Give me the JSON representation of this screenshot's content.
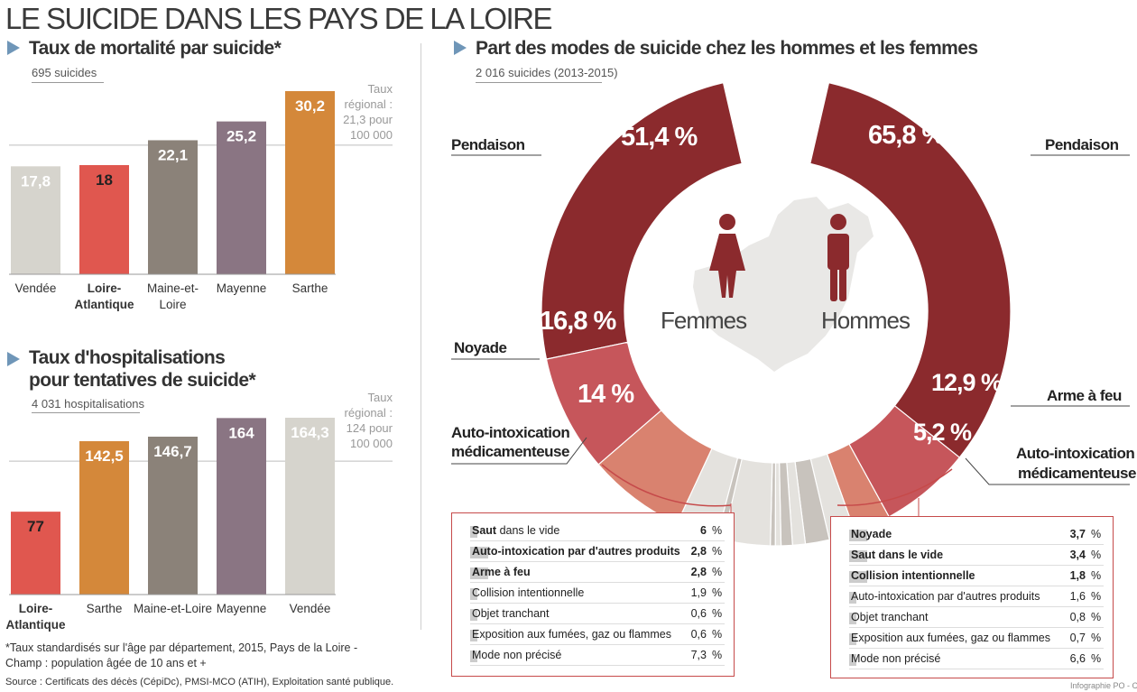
{
  "title": "LE SUICIDE DANS LES PAYS DE LA LOIRE",
  "chart1": {
    "heading": "Taux de mortalité par suicide*",
    "subtitle": "695 suicides",
    "reference_note": "Taux régional : 21,3 pour 100 000",
    "reference_note_lines": [
      "Taux",
      "régional :",
      "21,3 pour",
      "100 000"
    ],
    "reference_value": 21.3
  },
  "chart2": {
    "heading_line1": "Taux d'hospitalisations",
    "heading_line2": "pour tentatives de suicide*",
    "subtitle": "4 031 hospitalisations",
    "reference_note": "Taux régional : 124 pour 100 000",
    "reference_note_lines": [
      "Taux",
      "régional :",
      "124 pour",
      "100 000"
    ],
    "reference_value": 124
  },
  "chart3": {
    "heading": "Part des modes de suicide chez les hommes et les femmes",
    "subtitle": "2 016 suicides (2013-2015)",
    "women_label": "Femmes",
    "men_label": "Hommes",
    "women_labels": {
      "pendaison": "Pendaison",
      "noyade": "Noyade",
      "auto_intox_line1": "Auto-intoxication",
      "auto_intox_line2": "médicamenteuse"
    },
    "men_labels": {
      "pendaison": "Pendaison",
      "arme": "Arme à feu",
      "auto_intox_line1": "Auto-intoxication",
      "auto_intox_line2": "médicamenteuse"
    },
    "women_value_labels": [
      "51,4 %",
      "16,8 %",
      "14 %"
    ],
    "men_value_labels": [
      "65,8 %",
      "12,9 %",
      "5,2 %"
    ],
    "women_table": [
      {
        "label": "Saut dans le vide",
        "bold_part": "Saut",
        "rest": " dans le vide",
        "all_bold": false,
        "value": "6",
        "unit": "%"
      },
      {
        "label": "Auto-intoxication par d'autres produits",
        "all_bold": true,
        "value": "2,8",
        "unit": "%"
      },
      {
        "label": "Arme à feu",
        "all_bold": true,
        "value": "2,8",
        "unit": "%"
      },
      {
        "label": "Collision intentionnelle",
        "all_bold": false,
        "value": "1,9",
        "unit": "%"
      },
      {
        "label": "Objet tranchant",
        "all_bold": false,
        "value": "0,6",
        "unit": "%"
      },
      {
        "label": "Exposition aux fumées, gaz ou flammes",
        "all_bold": false,
        "value": "0,6",
        "unit": "%"
      },
      {
        "label": "Mode non précisé",
        "all_bold": false,
        "value": "7,3",
        "unit": "%"
      }
    ],
    "men_table": [
      {
        "label": "Noyade",
        "all_bold": true,
        "value": "3,7",
        "unit": "%"
      },
      {
        "label": "Saut dans le vide",
        "all_bold": true,
        "value": "3,4",
        "unit": "%"
      },
      {
        "label": "Collision intentionnelle",
        "all_bold": true,
        "value": "1,8",
        "unit": "%"
      },
      {
        "label": "Auto-intoxication par d'autres produits",
        "all_bold": false,
        "value": "1,6",
        "unit": "%"
      },
      {
        "label": "Objet tranchant",
        "all_bold": false,
        "value": "0,8",
        "unit": "%"
      },
      {
        "label": "Exposition aux fumées, gaz ou flammes",
        "all_bold": false,
        "value": "0,7",
        "unit": "%"
      },
      {
        "label": "Mode non précisé",
        "all_bold": false,
        "value": "6,6",
        "unit": "%"
      }
    ]
  },
  "footnote": "*Taux standardisés sur l'âge par département, 2015, Pays de la Loire - Champ : population âgée de 10 ans et +",
  "source": "Source : Certificats des décès (CépiDc), PMSI-MCO (ATIH), Exploitation santé publique.",
  "credit": "Infographie PO - CG",
  "colors": {
    "pendaison": "#8b2a2d",
    "noyade": "#c6565b",
    "auto_intox": "#d9826f",
    "other_light": "#e4e2de",
    "other_mid": "#c8c3bd",
    "vendee": "#d6d4cd",
    "loire_atlantique": "#e0574f",
    "maine_et_loire": "#8b8279",
    "mayenne": "#8a7583",
    "sarthe": "#d4883a",
    "triangle": "#6f96b8"
  },
  "chart_data": [
    {
      "type": "bar",
      "title": "Taux de mortalité par suicide*",
      "categories": [
        "Vendée",
        "Loire-Atlantique",
        "Maine-et-Loire",
        "Mayenne",
        "Sarthe"
      ],
      "category_lines": [
        [
          "Vendée"
        ],
        [
          "Loire-",
          "Atlantique"
        ],
        [
          "Maine-et-",
          "Loire"
        ],
        [
          "Mayenne"
        ],
        [
          "Sarthe"
        ]
      ],
      "category_bold": [
        false,
        true,
        false,
        false,
        false
      ],
      "values": [
        17.8,
        18,
        22.1,
        25.2,
        30.2
      ],
      "value_labels": [
        "17,8",
        "18",
        "22,1",
        "25,2",
        "30,2"
      ],
      "colors": [
        "#d6d4cd",
        "#e0574f",
        "#8b8279",
        "#8a7583",
        "#d4883a"
      ],
      "label_colors": [
        "#ffffff",
        "#222222",
        "#ffffff",
        "#ffffff",
        "#ffffff"
      ],
      "ylim": [
        0,
        30.2
      ]
    },
    {
      "type": "bar",
      "title": "Taux d'hospitalisations pour tentatives de suicide*",
      "categories": [
        "Loire-Atlantique",
        "Sarthe",
        "Maine-et-Loire",
        "Mayenne",
        "Vendée"
      ],
      "category_lines": [
        [
          "Loire-",
          "Atlantique"
        ],
        [
          "Sarthe"
        ],
        [
          "Maine-et-Loire"
        ],
        [
          "Mayenne"
        ],
        [
          "Vendée"
        ]
      ],
      "category_bold": [
        true,
        false,
        false,
        false,
        false
      ],
      "values": [
        77,
        142.5,
        146.7,
        164,
        164.3
      ],
      "value_labels": [
        "77",
        "142,5",
        "146,7",
        "164",
        "164,3"
      ],
      "colors": [
        "#e0574f",
        "#d4883a",
        "#8b8279",
        "#8a7583",
        "#d6d4cd"
      ],
      "label_colors": [
        "#222222",
        "#ffffff",
        "#ffffff",
        "#ffffff",
        "#ffffff"
      ],
      "ylim": [
        0,
        164.3
      ]
    },
    {
      "type": "pie",
      "title": "Femmes",
      "categories": [
        "Pendaison",
        "Noyade",
        "Auto-intoxication médicamenteuse",
        "Saut dans le vide",
        "Auto-intoxication par d'autres produits",
        "Arme à feu",
        "Collision intentionnelle",
        "Objet tranchant",
        "Exposition aux fumées, gaz ou flammes",
        "Mode non précisé"
      ],
      "values": [
        51.4,
        16.8,
        14,
        6,
        2.8,
        2.8,
        1.9,
        0.6,
        0.6,
        7.3
      ]
    },
    {
      "type": "pie",
      "title": "Hommes",
      "categories": [
        "Pendaison",
        "Arme à feu",
        "Auto-intoxication médicamenteuse",
        "Noyade",
        "Saut dans le vide",
        "Collision intentionnelle",
        "Auto-intoxication par d'autres produits",
        "Objet tranchant",
        "Exposition aux fumées, gaz ou flammes",
        "Mode non précisé"
      ],
      "values": [
        65.8,
        12.9,
        5.2,
        3.7,
        3.4,
        1.8,
        1.6,
        0.8,
        0.7,
        6.6
      ]
    }
  ]
}
